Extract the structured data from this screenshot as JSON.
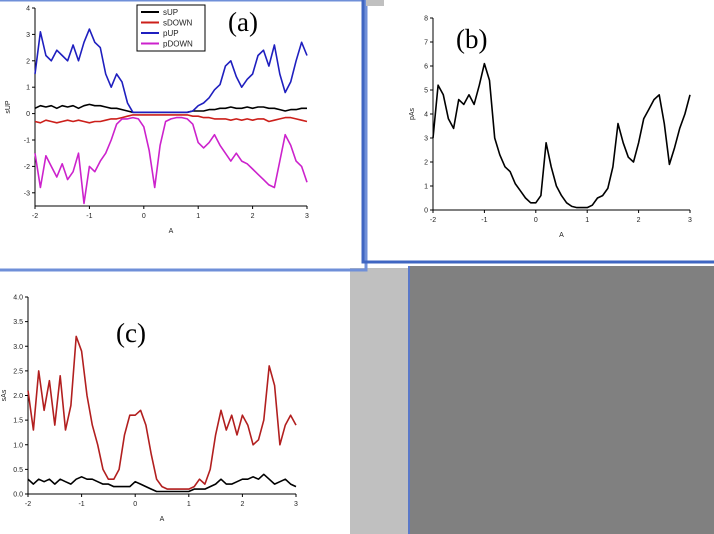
{
  "chart_data": [
    {
      "panel": "(a)",
      "type": "line",
      "xlabel": "A",
      "ylabel": "sUP",
      "xlim": [
        -2,
        3
      ],
      "ylim": [
        -3.5,
        4
      ],
      "xticks": [
        "-2",
        "-1",
        "0",
        "1",
        "2",
        "3"
      ],
      "yticks": [
        "-3",
        "-2",
        "-1",
        "0",
        "1",
        "2",
        "3",
        "4"
      ],
      "legend_position": "top-center",
      "x": [
        -2.0,
        -1.9,
        -1.8,
        -1.7,
        -1.6,
        -1.5,
        -1.4,
        -1.3,
        -1.2,
        -1.1,
        -1.0,
        -0.9,
        -0.8,
        -0.7,
        -0.6,
        -0.5,
        -0.4,
        -0.3,
        -0.2,
        -0.1,
        0.0,
        0.1,
        0.2,
        0.3,
        0.4,
        0.5,
        0.6,
        0.7,
        0.8,
        0.9,
        1.0,
        1.1,
        1.2,
        1.3,
        1.4,
        1.5,
        1.6,
        1.7,
        1.8,
        1.9,
        2.0,
        2.1,
        2.2,
        2.3,
        2.4,
        2.5,
        2.6,
        2.7,
        2.8,
        2.9,
        3.0
      ],
      "series": [
        {
          "name": "sUP",
          "color": "#000000",
          "values": [
            0.2,
            0.3,
            0.25,
            0.3,
            0.2,
            0.3,
            0.25,
            0.3,
            0.2,
            0.3,
            0.35,
            0.3,
            0.3,
            0.25,
            0.2,
            0.2,
            0.15,
            0.1,
            0.05,
            0.05,
            0.05,
            0.05,
            0.05,
            0.05,
            0.05,
            0.05,
            0.05,
            0.05,
            0.05,
            0.1,
            0.1,
            0.1,
            0.15,
            0.15,
            0.2,
            0.2,
            0.25,
            0.2,
            0.2,
            0.25,
            0.2,
            0.25,
            0.25,
            0.2,
            0.2,
            0.15,
            0.1,
            0.15,
            0.15,
            0.2,
            0.2
          ]
        },
        {
          "name": "sDOWN",
          "color": "#cc1f1a",
          "values": [
            -0.3,
            -0.35,
            -0.25,
            -0.3,
            -0.35,
            -0.3,
            -0.25,
            -0.3,
            -0.25,
            -0.3,
            -0.35,
            -0.3,
            -0.3,
            -0.25,
            -0.2,
            -0.2,
            -0.15,
            -0.1,
            -0.05,
            -0.05,
            -0.05,
            -0.05,
            -0.05,
            -0.05,
            -0.05,
            -0.05,
            -0.05,
            -0.05,
            -0.05,
            -0.1,
            -0.1,
            -0.15,
            -0.15,
            -0.2,
            -0.2,
            -0.2,
            -0.25,
            -0.2,
            -0.25,
            -0.2,
            -0.25,
            -0.2,
            -0.2,
            -0.3,
            -0.25,
            -0.2,
            -0.15,
            -0.15,
            -0.2,
            -0.25,
            -0.3
          ]
        },
        {
          "name": "pUP",
          "color": "#1f1fbf",
          "values": [
            1.5,
            3.1,
            2.2,
            2.0,
            2.4,
            2.2,
            2.0,
            2.6,
            2.0,
            2.7,
            3.2,
            2.7,
            2.5,
            1.5,
            1.0,
            1.5,
            1.2,
            0.4,
            0.05,
            0.05,
            0.05,
            0.05,
            0.05,
            0.05,
            0.05,
            0.05,
            0.05,
            0.05,
            0.05,
            0.1,
            0.3,
            0.4,
            0.6,
            0.9,
            1.1,
            1.8,
            2.0,
            1.4,
            1.0,
            1.3,
            1.5,
            2.2,
            2.4,
            1.8,
            2.6,
            1.5,
            0.8,
            1.2,
            2.0,
            2.7,
            2.2
          ]
        },
        {
          "name": "pDOWN",
          "color": "#cc22cc",
          "values": [
            -1.5,
            -2.8,
            -1.6,
            -2.0,
            -2.4,
            -1.9,
            -2.5,
            -2.2,
            -1.5,
            -3.4,
            -2.0,
            -2.2,
            -1.8,
            -1.5,
            -1.0,
            -0.4,
            -0.2,
            -0.2,
            -0.15,
            -0.2,
            -0.5,
            -1.4,
            -2.8,
            -1.2,
            -0.3,
            -0.2,
            -0.15,
            -0.15,
            -0.2,
            -0.4,
            -1.1,
            -1.3,
            -1.1,
            -0.8,
            -1.2,
            -1.5,
            -1.8,
            -1.5,
            -1.8,
            -1.9,
            -2.1,
            -2.3,
            -2.5,
            -2.7,
            -2.8,
            -1.8,
            -0.8,
            -1.2,
            -1.8,
            -2.0,
            -2.6
          ]
        }
      ]
    },
    {
      "panel": "(b)",
      "type": "line",
      "xlabel": "A",
      "ylabel": "pAs",
      "xlim": [
        -2,
        3
      ],
      "ylim": [
        0,
        8
      ],
      "xticks": [
        "-2",
        "-1",
        "0",
        "1",
        "2",
        "3"
      ],
      "yticks": [
        "0",
        "1",
        "2",
        "3",
        "4",
        "5",
        "6",
        "7",
        "8"
      ],
      "x": [
        -2.0,
        -1.9,
        -1.8,
        -1.7,
        -1.6,
        -1.5,
        -1.4,
        -1.3,
        -1.2,
        -1.1,
        -1.0,
        -0.9,
        -0.8,
        -0.7,
        -0.6,
        -0.5,
        -0.4,
        -0.3,
        -0.2,
        -0.1,
        0.0,
        0.1,
        0.2,
        0.3,
        0.4,
        0.5,
        0.6,
        0.7,
        0.8,
        0.9,
        1.0,
        1.1,
        1.2,
        1.3,
        1.4,
        1.5,
        1.6,
        1.7,
        1.8,
        1.9,
        2.0,
        2.1,
        2.2,
        2.3,
        2.4,
        2.5,
        2.6,
        2.7,
        2.8,
        2.9,
        3.0
      ],
      "series": [
        {
          "color": "#000000",
          "values": [
            3.0,
            5.2,
            4.8,
            3.8,
            3.4,
            4.6,
            4.4,
            4.8,
            4.4,
            5.2,
            6.1,
            5.4,
            3.0,
            2.3,
            1.8,
            1.6,
            1.1,
            0.8,
            0.5,
            0.3,
            0.3,
            0.6,
            2.8,
            1.8,
            1.0,
            0.6,
            0.3,
            0.15,
            0.1,
            0.1,
            0.1,
            0.2,
            0.5,
            0.6,
            0.9,
            1.8,
            3.6,
            2.8,
            2.2,
            2.0,
            2.8,
            3.8,
            4.2,
            4.6,
            4.8,
            3.6,
            1.9,
            2.6,
            3.4,
            4.0,
            4.8
          ]
        }
      ]
    },
    {
      "panel": "(c)",
      "type": "line",
      "xlabel": "A",
      "ylabel": "sAs",
      "xlim": [
        -2,
        3
      ],
      "ylim": [
        0,
        4
      ],
      "xticks": [
        "-2",
        "-1",
        "0",
        "1",
        "2",
        "3"
      ],
      "yticks": [
        "0.0",
        "0.5",
        "1.0",
        "1.5",
        "2.0",
        "2.5",
        "3.0",
        "3.5",
        "4.0"
      ],
      "x": [
        -2.0,
        -1.9,
        -1.8,
        -1.7,
        -1.6,
        -1.5,
        -1.4,
        -1.3,
        -1.2,
        -1.1,
        -1.0,
        -0.9,
        -0.8,
        -0.7,
        -0.6,
        -0.5,
        -0.4,
        -0.3,
        -0.2,
        -0.1,
        0.0,
        0.1,
        0.2,
        0.3,
        0.4,
        0.5,
        0.6,
        0.7,
        0.8,
        0.9,
        1.0,
        1.1,
        1.2,
        1.3,
        1.4,
        1.5,
        1.6,
        1.7,
        1.8,
        1.9,
        2.0,
        2.1,
        2.2,
        2.3,
        2.4,
        2.5,
        2.6,
        2.7,
        2.8,
        2.9,
        3.0
      ],
      "series": [
        {
          "color": "#000000",
          "values": [
            0.3,
            0.2,
            0.3,
            0.25,
            0.3,
            0.2,
            0.3,
            0.25,
            0.2,
            0.3,
            0.35,
            0.3,
            0.3,
            0.25,
            0.2,
            0.2,
            0.15,
            0.15,
            0.15,
            0.15,
            0.25,
            0.2,
            0.15,
            0.1,
            0.05,
            0.05,
            0.05,
            0.05,
            0.05,
            0.05,
            0.05,
            0.1,
            0.1,
            0.1,
            0.15,
            0.2,
            0.3,
            0.2,
            0.2,
            0.25,
            0.3,
            0.3,
            0.35,
            0.3,
            0.4,
            0.3,
            0.2,
            0.25,
            0.3,
            0.2,
            0.15
          ]
        },
        {
          "color": "#b21f1f",
          "values": [
            2.1,
            1.3,
            2.5,
            1.7,
            2.3,
            1.4,
            2.4,
            1.3,
            1.8,
            3.2,
            2.9,
            2.0,
            1.4,
            1.0,
            0.5,
            0.3,
            0.3,
            0.5,
            1.2,
            1.6,
            1.6,
            1.7,
            1.4,
            0.8,
            0.3,
            0.15,
            0.1,
            0.1,
            0.1,
            0.1,
            0.1,
            0.15,
            0.3,
            0.2,
            0.5,
            1.2,
            1.7,
            1.3,
            1.6,
            1.2,
            1.6,
            1.4,
            1.0,
            1.1,
            1.5,
            2.6,
            2.2,
            1.0,
            1.4,
            1.6,
            1.4
          ]
        }
      ]
    }
  ]
}
